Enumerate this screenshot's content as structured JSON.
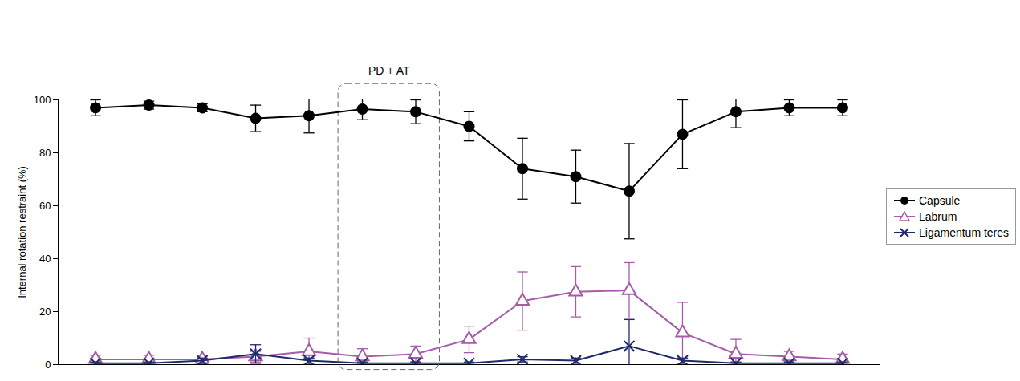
{
  "chart_data": {
    "type": "line",
    "categories": [
      null,
      null,
      null,
      null,
      null,
      null,
      null,
      null,
      null,
      null,
      null,
      null,
      null,
      null,
      null
    ],
    "y_label": "Internal rotation restraint (%)",
    "ylim": [
      0,
      100
    ],
    "yticks": [
      0,
      20,
      40,
      60,
      80,
      100
    ],
    "legend": "right",
    "annotations": [
      {
        "text": "PD + AT",
        "x": [
          5,
          6
        ]
      }
    ],
    "series": [
      {
        "name": "Capsule",
        "color": "#000000",
        "marker": "circle",
        "values": [
          97,
          98,
          97,
          93,
          94,
          96.5,
          95.5,
          90,
          74,
          71,
          65.5,
          87,
          95.5,
          97,
          97
        ],
        "errors": [
          3,
          1.5,
          1.5,
          5,
          6.5,
          4,
          4.5,
          5.5,
          11.5,
          10,
          18,
          13,
          6,
          3,
          3
        ]
      },
      {
        "name": "Labrum",
        "color": "#a65ca8",
        "marker": "triangle",
        "values": [
          2,
          2,
          2,
          3,
          5,
          3,
          4,
          9.5,
          24,
          27.5,
          28,
          12,
          4,
          3,
          2
        ],
        "errors": [
          1.5,
          1.5,
          1.5,
          2,
          5,
          3,
          3,
          5,
          11,
          9.5,
          10.5,
          11.5,
          5.5,
          2,
          2
        ]
      },
      {
        "name": "Ligamentum teres",
        "color": "#1f2a6b",
        "marker": "cross",
        "values": [
          0.5,
          0.5,
          1.5,
          4,
          1.5,
          0.5,
          0.5,
          0.5,
          2,
          1.5,
          7,
          1.5,
          0.5,
          0.5,
          0.5
        ],
        "errors": [
          0.5,
          0.5,
          1,
          3.5,
          1,
          0.5,
          0.5,
          0.5,
          1,
          1,
          10,
          1,
          0.5,
          0.5,
          0.5
        ]
      }
    ]
  }
}
